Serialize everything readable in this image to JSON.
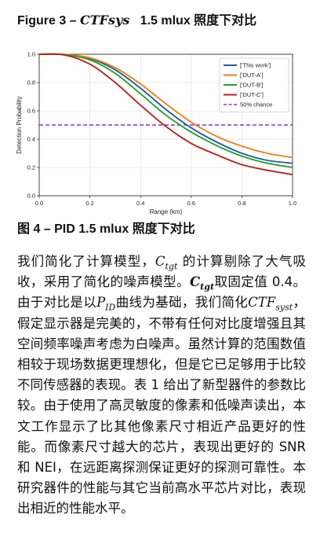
{
  "figure3": {
    "prefix": "Figure 3 – ",
    "math": "CTFsys",
    "suffix": "   1.5 mlux 照度下对比"
  },
  "chart_data": {
    "type": "line",
    "xlabel": "Range (km)",
    "ylabel": "Detection Probability",
    "xlim": [
      0.0,
      1.0
    ],
    "ylim": [
      0.0,
      1.0
    ],
    "xticks": [
      "0.0",
      "0.2",
      "0.4",
      "0.6",
      "0.8",
      "1.0"
    ],
    "yticks": [
      "0.0",
      "0.2",
      "0.4",
      "0.6",
      "0.8",
      "1.0"
    ],
    "grid": true,
    "legend_position": "top-right",
    "x": [
      0.0,
      0.1,
      0.2,
      0.3,
      0.4,
      0.5,
      0.6,
      0.7,
      0.8,
      0.9,
      1.0
    ],
    "series": [
      {
        "name": "['This work']",
        "color": "#1f5fa0",
        "dash": "solid",
        "values": [
          1.0,
          0.998,
          0.97,
          0.89,
          0.76,
          0.61,
          0.48,
          0.38,
          0.3,
          0.25,
          0.23
        ]
      },
      {
        "name": "['DUT-A']",
        "color": "#f07f1a",
        "dash": "solid",
        "values": [
          1.0,
          0.999,
          0.975,
          0.905,
          0.79,
          0.65,
          0.52,
          0.42,
          0.35,
          0.3,
          0.27
        ]
      },
      {
        "name": "['DUT-B']",
        "color": "#2ca02c",
        "dash": "solid",
        "values": [
          1.0,
          0.997,
          0.96,
          0.865,
          0.72,
          0.57,
          0.45,
          0.355,
          0.28,
          0.23,
          0.2
        ]
      },
      {
        "name": "['DUT-C']",
        "color": "#c0201e",
        "dash": "solid",
        "values": [
          1.0,
          0.995,
          0.93,
          0.8,
          0.64,
          0.49,
          0.37,
          0.29,
          0.22,
          0.18,
          0.15
        ]
      },
      {
        "name": "50% chance",
        "color": "#8a2be2",
        "dash": "dashed",
        "values": [
          0.5,
          0.5,
          0.5,
          0.5,
          0.5,
          0.5,
          0.5,
          0.5,
          0.5,
          0.5,
          0.5
        ]
      }
    ]
  },
  "figure4": {
    "caption": "图 4 – PID 1.5 mlux 照度下对比"
  },
  "paragraph": {
    "t1": "我们简化了计算模型，",
    "m1": "C",
    "s1": "tgt",
    "t2": " 的计算剔除了大气吸收，采用了简化的噪声模型。",
    "m2": "C",
    "s2": "tgt",
    "t3": "取固定值 0.4。由于对比是以",
    "m3": "P",
    "s3": "ID",
    "t4": "曲线为基础，我们简化",
    "m4": "CTF",
    "s4": "syst",
    "t5": "，假定显示器是完美的，不带有任何对比度增强且其空间频率噪声考虑为白噪声。虽然计算的范围数值相较于现场数据更理想化，但是它已足够用于比较不同传感器的表现。表 1 给出了新型器件的参数比较。由于使用了高灵敏度的像素和低噪声读出，本文工作显示了比其他像素尺寸相近产品更好的性能。而像素尺寸越大的芯片，表现出更好的 SNR 和 NEI，在远距离探测保证更好的探测可靠性。本研究器件的性能与其它当前高水平芯片对比，表现出相近的性能水平。"
  }
}
